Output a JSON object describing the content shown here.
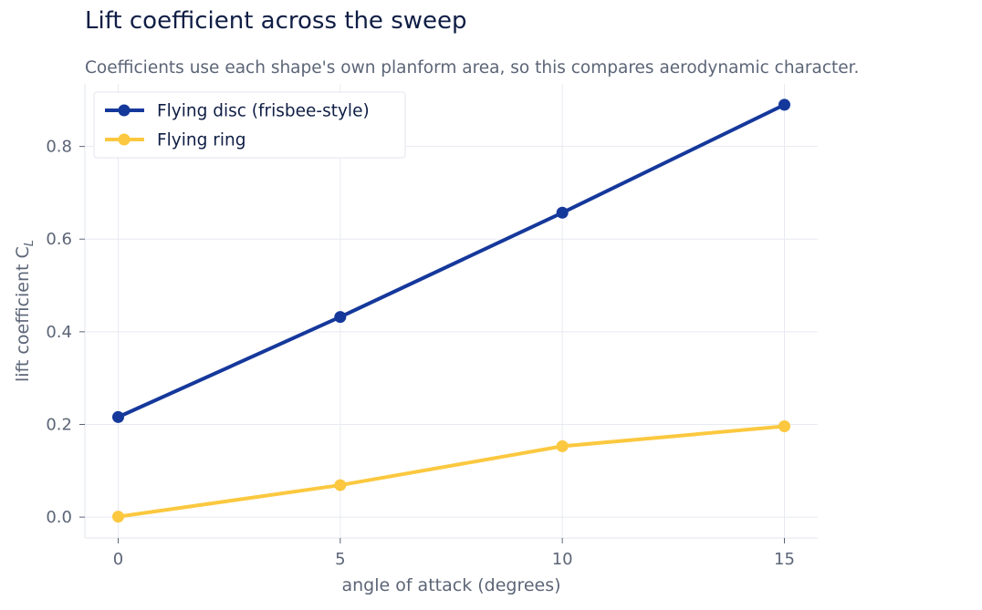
{
  "chart_data": {
    "type": "line",
    "title": "Lift coefficient across the sweep",
    "subtitle": "Coefficients use each shape's own planform area, so this compares aerodynamic character.",
    "xlabel": "angle of attack  (degrees)",
    "ylabel": "lift coefficient  C",
    "ylabel_subscript": "L",
    "x": [
      0,
      5,
      10,
      15
    ],
    "x_ticks": [
      0,
      5,
      10,
      15
    ],
    "y_ticks": [
      0.0,
      0.2,
      0.4,
      0.6,
      0.8
    ],
    "y_tick_labels": [
      "0.0",
      "0.2",
      "0.4",
      "0.6",
      "0.8"
    ],
    "xlim": [
      -0.75,
      15.75
    ],
    "ylim": [
      -0.045,
      0.935
    ],
    "grid": true,
    "legend_position": "top-left",
    "series": [
      {
        "name": "Flying disc (frisbee-style)",
        "color": "#15389b",
        "values": [
          0.216,
          0.432,
          0.657,
          0.89
        ]
      },
      {
        "name": "Flying ring",
        "color": "#fbc83f",
        "values": [
          0.001,
          0.069,
          0.153,
          0.196
        ]
      }
    ]
  }
}
